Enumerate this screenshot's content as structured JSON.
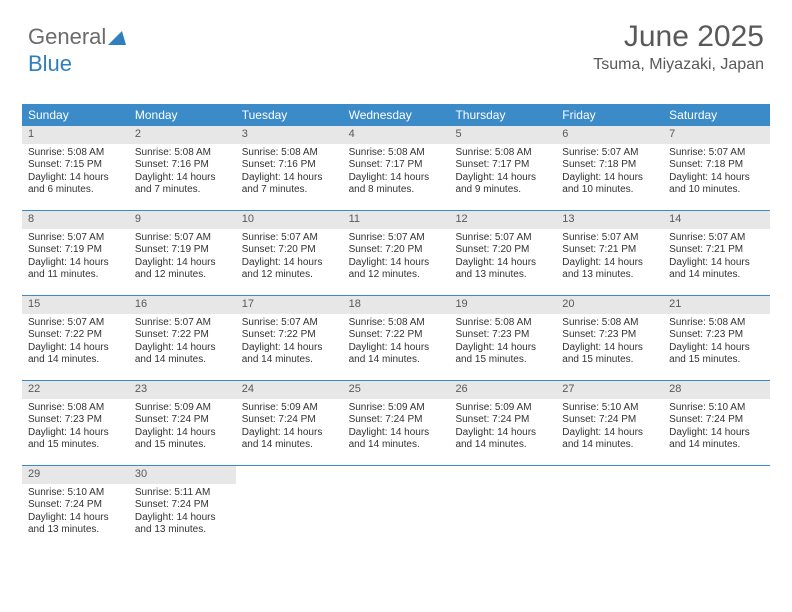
{
  "logo": {
    "part1": "General",
    "part2": "Blue"
  },
  "header": {
    "month_title": "June 2025",
    "location": "Tsuma, Miyazaki, Japan"
  },
  "colors": {
    "header_bar": "#3b8bc9",
    "day_num_bg": "#e7e7e7",
    "text": "#333333",
    "title_text": "#595959"
  },
  "typography": {
    "title_fontsize": 30,
    "location_fontsize": 16,
    "dow_fontsize": 12,
    "cell_fontsize": 10
  },
  "days_of_week": [
    "Sunday",
    "Monday",
    "Tuesday",
    "Wednesday",
    "Thursday",
    "Friday",
    "Saturday"
  ],
  "weeks": [
    [
      {
        "n": "1",
        "sunrise": "Sunrise: 5:08 AM",
        "sunset": "Sunset: 7:15 PM",
        "dl1": "Daylight: 14 hours",
        "dl2": "and 6 minutes."
      },
      {
        "n": "2",
        "sunrise": "Sunrise: 5:08 AM",
        "sunset": "Sunset: 7:16 PM",
        "dl1": "Daylight: 14 hours",
        "dl2": "and 7 minutes."
      },
      {
        "n": "3",
        "sunrise": "Sunrise: 5:08 AM",
        "sunset": "Sunset: 7:16 PM",
        "dl1": "Daylight: 14 hours",
        "dl2": "and 7 minutes."
      },
      {
        "n": "4",
        "sunrise": "Sunrise: 5:08 AM",
        "sunset": "Sunset: 7:17 PM",
        "dl1": "Daylight: 14 hours",
        "dl2": "and 8 minutes."
      },
      {
        "n": "5",
        "sunrise": "Sunrise: 5:08 AM",
        "sunset": "Sunset: 7:17 PM",
        "dl1": "Daylight: 14 hours",
        "dl2": "and 9 minutes."
      },
      {
        "n": "6",
        "sunrise": "Sunrise: 5:07 AM",
        "sunset": "Sunset: 7:18 PM",
        "dl1": "Daylight: 14 hours",
        "dl2": "and 10 minutes."
      },
      {
        "n": "7",
        "sunrise": "Sunrise: 5:07 AM",
        "sunset": "Sunset: 7:18 PM",
        "dl1": "Daylight: 14 hours",
        "dl2": "and 10 minutes."
      }
    ],
    [
      {
        "n": "8",
        "sunrise": "Sunrise: 5:07 AM",
        "sunset": "Sunset: 7:19 PM",
        "dl1": "Daylight: 14 hours",
        "dl2": "and 11 minutes."
      },
      {
        "n": "9",
        "sunrise": "Sunrise: 5:07 AM",
        "sunset": "Sunset: 7:19 PM",
        "dl1": "Daylight: 14 hours",
        "dl2": "and 12 minutes."
      },
      {
        "n": "10",
        "sunrise": "Sunrise: 5:07 AM",
        "sunset": "Sunset: 7:20 PM",
        "dl1": "Daylight: 14 hours",
        "dl2": "and 12 minutes."
      },
      {
        "n": "11",
        "sunrise": "Sunrise: 5:07 AM",
        "sunset": "Sunset: 7:20 PM",
        "dl1": "Daylight: 14 hours",
        "dl2": "and 12 minutes."
      },
      {
        "n": "12",
        "sunrise": "Sunrise: 5:07 AM",
        "sunset": "Sunset: 7:20 PM",
        "dl1": "Daylight: 14 hours",
        "dl2": "and 13 minutes."
      },
      {
        "n": "13",
        "sunrise": "Sunrise: 5:07 AM",
        "sunset": "Sunset: 7:21 PM",
        "dl1": "Daylight: 14 hours",
        "dl2": "and 13 minutes."
      },
      {
        "n": "14",
        "sunrise": "Sunrise: 5:07 AM",
        "sunset": "Sunset: 7:21 PM",
        "dl1": "Daylight: 14 hours",
        "dl2": "and 14 minutes."
      }
    ],
    [
      {
        "n": "15",
        "sunrise": "Sunrise: 5:07 AM",
        "sunset": "Sunset: 7:22 PM",
        "dl1": "Daylight: 14 hours",
        "dl2": "and 14 minutes."
      },
      {
        "n": "16",
        "sunrise": "Sunrise: 5:07 AM",
        "sunset": "Sunset: 7:22 PM",
        "dl1": "Daylight: 14 hours",
        "dl2": "and 14 minutes."
      },
      {
        "n": "17",
        "sunrise": "Sunrise: 5:07 AM",
        "sunset": "Sunset: 7:22 PM",
        "dl1": "Daylight: 14 hours",
        "dl2": "and 14 minutes."
      },
      {
        "n": "18",
        "sunrise": "Sunrise: 5:08 AM",
        "sunset": "Sunset: 7:22 PM",
        "dl1": "Daylight: 14 hours",
        "dl2": "and 14 minutes."
      },
      {
        "n": "19",
        "sunrise": "Sunrise: 5:08 AM",
        "sunset": "Sunset: 7:23 PM",
        "dl1": "Daylight: 14 hours",
        "dl2": "and 15 minutes."
      },
      {
        "n": "20",
        "sunrise": "Sunrise: 5:08 AM",
        "sunset": "Sunset: 7:23 PM",
        "dl1": "Daylight: 14 hours",
        "dl2": "and 15 minutes."
      },
      {
        "n": "21",
        "sunrise": "Sunrise: 5:08 AM",
        "sunset": "Sunset: 7:23 PM",
        "dl1": "Daylight: 14 hours",
        "dl2": "and 15 minutes."
      }
    ],
    [
      {
        "n": "22",
        "sunrise": "Sunrise: 5:08 AM",
        "sunset": "Sunset: 7:23 PM",
        "dl1": "Daylight: 14 hours",
        "dl2": "and 15 minutes."
      },
      {
        "n": "23",
        "sunrise": "Sunrise: 5:09 AM",
        "sunset": "Sunset: 7:24 PM",
        "dl1": "Daylight: 14 hours",
        "dl2": "and 15 minutes."
      },
      {
        "n": "24",
        "sunrise": "Sunrise: 5:09 AM",
        "sunset": "Sunset: 7:24 PM",
        "dl1": "Daylight: 14 hours",
        "dl2": "and 14 minutes."
      },
      {
        "n": "25",
        "sunrise": "Sunrise: 5:09 AM",
        "sunset": "Sunset: 7:24 PM",
        "dl1": "Daylight: 14 hours",
        "dl2": "and 14 minutes."
      },
      {
        "n": "26",
        "sunrise": "Sunrise: 5:09 AM",
        "sunset": "Sunset: 7:24 PM",
        "dl1": "Daylight: 14 hours",
        "dl2": "and 14 minutes."
      },
      {
        "n": "27",
        "sunrise": "Sunrise: 5:10 AM",
        "sunset": "Sunset: 7:24 PM",
        "dl1": "Daylight: 14 hours",
        "dl2": "and 14 minutes."
      },
      {
        "n": "28",
        "sunrise": "Sunrise: 5:10 AM",
        "sunset": "Sunset: 7:24 PM",
        "dl1": "Daylight: 14 hours",
        "dl2": "and 14 minutes."
      }
    ],
    [
      {
        "n": "29",
        "sunrise": "Sunrise: 5:10 AM",
        "sunset": "Sunset: 7:24 PM",
        "dl1": "Daylight: 14 hours",
        "dl2": "and 13 minutes."
      },
      {
        "n": "30",
        "sunrise": "Sunrise: 5:11 AM",
        "sunset": "Sunset: 7:24 PM",
        "dl1": "Daylight: 14 hours",
        "dl2": "and 13 minutes."
      },
      null,
      null,
      null,
      null,
      null
    ]
  ]
}
